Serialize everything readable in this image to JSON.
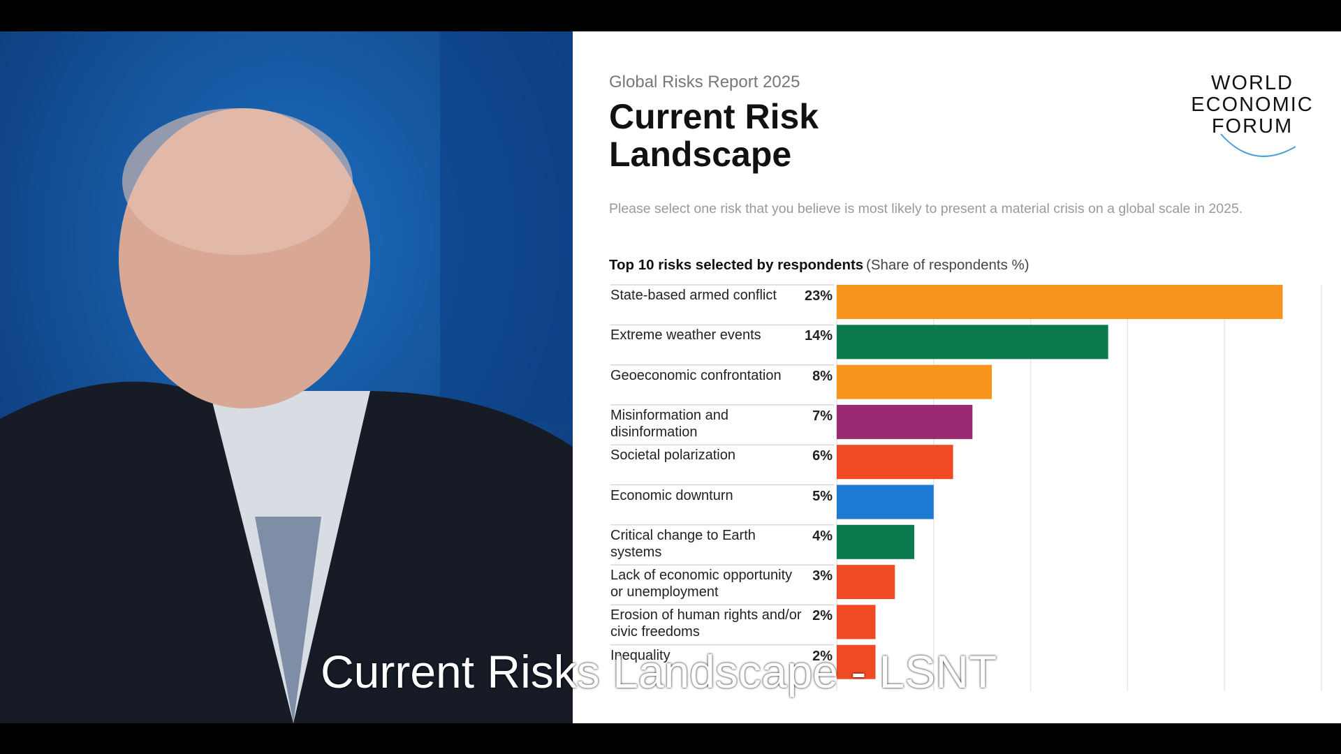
{
  "caption": "Current Risks Landscape - LSNT",
  "logo": [
    "WORLD",
    "ECONOMIC",
    "FORUM"
  ],
  "chart_data": {
    "type": "barh",
    "supertitle": "Global Risks Report 2025",
    "title": [
      "Current Risk",
      "Landscape"
    ],
    "question": "Please select one risk that you believe is most likely to present a material crisis on a global scale in 2025.",
    "subtitle": "Top 10 risks selected by respondents",
    "unit_note": "(Share of respondents %)",
    "categories": [
      "State-based armed conflict",
      "Extreme weather events",
      "Geoeconomic confrontation",
      "Misinformation and disinformation",
      "Societal polarization",
      "Economic downturn",
      "Critical change to Earth systems",
      "Lack of economic opportunity or unemployment",
      "Erosion of human rights and/or civic freedoms",
      "Inequality"
    ],
    "values": [
      23,
      14,
      8,
      7,
      6,
      5,
      4,
      3,
      2,
      2
    ],
    "value_labels": [
      "23%",
      "14%",
      "8%",
      "7%",
      "6%",
      "5%",
      "4%",
      "3%",
      "2%",
      "2%"
    ],
    "colors": [
      "#f7941d",
      "#0b7a4d",
      "#f7941d",
      "#9a2a72",
      "#f04a24",
      "#1f7ad4",
      "#0b7a4d",
      "#f04a24",
      "#f04a24",
      "#f04a24"
    ],
    "xlim": [
      0,
      25
    ],
    "xticks": [
      0,
      5,
      10,
      15,
      20,
      25
    ],
    "grid": true
  }
}
